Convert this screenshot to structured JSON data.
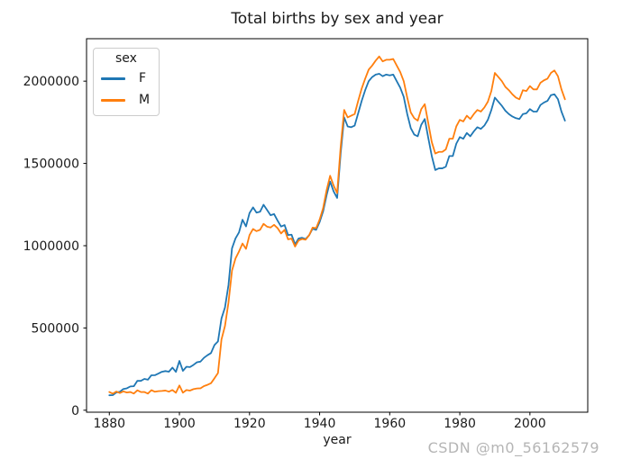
{
  "figure": {
    "watermark": "CSDN @m0_56162579",
    "background_color": "#ffffff",
    "text_color": "#1a1a1a",
    "watermark_color": "#b5b5b5"
  },
  "chart_data": {
    "type": "line",
    "title": "Total births by sex and year",
    "xlabel": "year",
    "ylabel": "",
    "grid": false,
    "legend": {
      "title": "sex",
      "position": "upper left"
    },
    "xlim": [
      1873.5,
      2016.5
    ],
    "ylim": [
      -12000,
      2258000
    ],
    "xticks": [
      1880,
      1900,
      1920,
      1940,
      1960,
      1980,
      2000
    ],
    "yticks": [
      0,
      500000,
      1000000,
      1500000,
      2000000
    ],
    "x": [
      1880,
      1881,
      1882,
      1883,
      1884,
      1885,
      1886,
      1887,
      1888,
      1889,
      1890,
      1891,
      1892,
      1893,
      1894,
      1895,
      1896,
      1897,
      1898,
      1899,
      1900,
      1901,
      1902,
      1903,
      1904,
      1905,
      1906,
      1907,
      1908,
      1909,
      1910,
      1911,
      1912,
      1913,
      1914,
      1915,
      1916,
      1917,
      1918,
      1919,
      1920,
      1921,
      1922,
      1923,
      1924,
      1925,
      1926,
      1927,
      1928,
      1929,
      1930,
      1931,
      1932,
      1933,
      1934,
      1935,
      1936,
      1937,
      1938,
      1939,
      1940,
      1941,
      1942,
      1943,
      1944,
      1945,
      1946,
      1947,
      1948,
      1949,
      1950,
      1951,
      1952,
      1953,
      1954,
      1955,
      1956,
      1957,
      1958,
      1959,
      1960,
      1961,
      1962,
      1963,
      1964,
      1965,
      1966,
      1967,
      1968,
      1969,
      1970,
      1971,
      1972,
      1973,
      1974,
      1975,
      1976,
      1977,
      1978,
      1979,
      1980,
      1981,
      1982,
      1983,
      1984,
      1985,
      1986,
      1987,
      1988,
      1989,
      1990,
      1991,
      1992,
      1993,
      1994,
      1995,
      1996,
      1997,
      1998,
      1999,
      2000,
      2001,
      2002,
      2003,
      2004,
      2005,
      2006,
      2007,
      2008,
      2009,
      2010
    ],
    "series": [
      {
        "name": "F",
        "color": "#1f77b4",
        "values": [
          91000,
          92000,
          107900,
          112300,
          129000,
          133100,
          144500,
          146000,
          178600,
          178400,
          190400,
          185500,
          212300,
          212900,
          222900,
          233600,
          237900,
          234200,
          258800,
          233000,
          299800,
          239300,
          264100,
          262000,
          275400,
          291600,
          295300,
          318600,
          334300,
          347200,
          396400,
          418200,
          557900,
          624400,
          761400,
          983800,
          1044200,
          1081200,
          1157600,
          1117200,
          1198200,
          1232800,
          1200800,
          1206200,
          1248800,
          1217200,
          1185100,
          1192200,
          1152700,
          1116300,
          1125500,
          1064800,
          1066900,
          1007700,
          1043800,
          1048300,
          1040500,
          1063400,
          1103300,
          1096100,
          1143500,
          1208400,
          1307400,
          1390000,
          1330000,
          1290000,
          1560000,
          1780000,
          1725000,
          1720000,
          1730000,
          1805000,
          1880000,
          1945000,
          2000000,
          2025000,
          2040000,
          2045000,
          2030000,
          2040000,
          2035000,
          2040000,
          2000000,
          1960000,
          1905000,
          1800000,
          1715000,
          1675000,
          1665000,
          1735000,
          1770000,
          1655000,
          1545000,
          1460000,
          1470000,
          1470000,
          1480000,
          1545000,
          1545000,
          1620000,
          1660000,
          1650000,
          1685000,
          1665000,
          1695000,
          1720000,
          1710000,
          1730000,
          1765000,
          1825000,
          1900000,
          1875000,
          1850000,
          1820000,
          1800000,
          1785000,
          1775000,
          1770000,
          1800000,
          1805000,
          1830000,
          1815000,
          1815000,
          1855000,
          1870000,
          1880000,
          1915000,
          1920000,
          1890000,
          1815000,
          1760000
        ]
      },
      {
        "name": "M",
        "color": "#ff7f0e",
        "values": [
          110500,
          100700,
          113700,
          104600,
          114400,
          107800,
          110800,
          101400,
          120900,
          110600,
          111000,
          101200,
          122000,
          112300,
          115800,
          117400,
          119600,
          112800,
          122700,
          106200,
          150600,
          106500,
          122700,
          119200,
          128100,
          132300,
          133200,
          146800,
          154300,
          164000,
          194200,
          225900,
          429900,
          512500,
          654700,
          848600,
          922200,
          964800,
          1013200,
          980800,
          1064500,
          1101400,
          1088400,
          1096200,
          1132700,
          1115800,
          1110500,
          1126700,
          1107100,
          1074200,
          1096500,
          1038700,
          1043300,
          994700,
          1031600,
          1040900,
          1036400,
          1063000,
          1109700,
          1106200,
          1158800,
          1227900,
          1337900,
          1425000,
          1365000,
          1320000,
          1600000,
          1825000,
          1780000,
          1790000,
          1800000,
          1880000,
          1955000,
          2015000,
          2070000,
          2095000,
          2125000,
          2150000,
          2120000,
          2130000,
          2130000,
          2135000,
          2095000,
          2055000,
          2000000,
          1900000,
          1810000,
          1775000,
          1760000,
          1830000,
          1860000,
          1745000,
          1630000,
          1560000,
          1570000,
          1570000,
          1585000,
          1650000,
          1650000,
          1725000,
          1765000,
          1755000,
          1790000,
          1770000,
          1800000,
          1825000,
          1815000,
          1840000,
          1875000,
          1940000,
          2050000,
          2025000,
          2000000,
          1965000,
          1945000,
          1920000,
          1900000,
          1890000,
          1945000,
          1940000,
          1970000,
          1950000,
          1950000,
          1990000,
          2005000,
          2015000,
          2050000,
          2065000,
          2030000,
          1950000,
          1890000
        ]
      }
    ]
  }
}
